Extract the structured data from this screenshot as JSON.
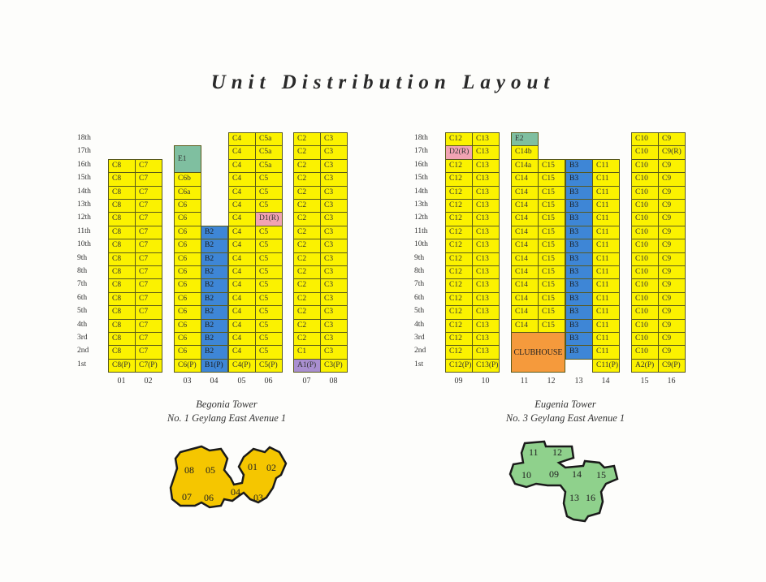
{
  "title": "Unit Distribution Layout",
  "floors": [
    "18th",
    "17th",
    "16th",
    "15th",
    "14th",
    "13th",
    "12th",
    "11th",
    "10th",
    "9th",
    "8th",
    "7th",
    "6th",
    "5th",
    "4th",
    "3rd",
    "2nd",
    "1st"
  ],
  "colors": {
    "yellow": "#fbf200",
    "blue": "#3e86d6",
    "green": "#7fbfa0",
    "pink": "#f2a3b3",
    "purple": "#a98fd0",
    "orange": "#f59a3c"
  },
  "begonia": {
    "name": "Begonia Tower",
    "address": "No. 1 Geylang East Avenue 1",
    "columns": [
      {
        "label": "01",
        "units": [
          null,
          null,
          "C8",
          "C8",
          "C8",
          "C8",
          "C8",
          "C8",
          "C8",
          "C8",
          "C8",
          "C8",
          "C8",
          "C8",
          "C8",
          "C8",
          "C8",
          "C8(P)"
        ]
      },
      {
        "label": "02",
        "units": [
          null,
          null,
          "C7",
          "C7",
          "C7",
          "C7",
          "C7",
          "C7",
          "C7",
          "C7",
          "C7",
          "C7",
          "C7",
          "C7",
          "C7",
          "C7",
          "C7",
          "C7(P)"
        ]
      },
      {
        "label": "03",
        "units": [
          null,
          "E1",
          "E1",
          "C6b",
          "C6a",
          "C6",
          "C6",
          "C6",
          "C6",
          "C6",
          "C6",
          "C6",
          "C6",
          "C6",
          "C6",
          "C6",
          "C6",
          "C6(P)"
        ]
      },
      {
        "label": "04",
        "units": [
          null,
          null,
          null,
          null,
          null,
          null,
          null,
          "B2",
          "B2",
          "B2",
          "B2",
          "B2",
          "B2",
          "B2",
          "B2",
          "B2",
          "B2",
          "B1(P)"
        ]
      },
      {
        "label": "05",
        "units": [
          "C4",
          "C4",
          "C4",
          "C4",
          "C4",
          "C4",
          "C4",
          "C4",
          "C4",
          "C4",
          "C4",
          "C4",
          "C4",
          "C4",
          "C4",
          "C4",
          "C4",
          "C4(P)"
        ]
      },
      {
        "label": "06",
        "units": [
          "C5a",
          "C5a",
          "C5a",
          "C5",
          "C5",
          "C5",
          "D1(R)",
          "C5",
          "C5",
          "C5",
          "C5",
          "C5",
          "C5",
          "C5",
          "C5",
          "C5",
          "C5",
          "C5(P)"
        ]
      },
      {
        "label": "07",
        "units": [
          "C2",
          "C2",
          "C2",
          "C2",
          "C2",
          "C2",
          "C2",
          "C2",
          "C2",
          "C2",
          "C2",
          "C2",
          "C2",
          "C2",
          "C2",
          "C2",
          "C1",
          "A1(P)"
        ]
      },
      {
        "label": "08",
        "units": [
          "C3",
          "C3",
          "C3",
          "C3",
          "C3",
          "C3",
          "C3",
          "C3",
          "C3",
          "C3",
          "C3",
          "C3",
          "C3",
          "C3",
          "C3",
          "C3",
          "C3",
          "C3(P)"
        ]
      }
    ],
    "keyplan_units": [
      "08",
      "05",
      "01",
      "02",
      "07",
      "06",
      "04",
      "03"
    ]
  },
  "eugenia": {
    "name": "Eugenia Tower",
    "address": "No. 3 Geylang East Avenue 1",
    "columns": [
      {
        "label": "09",
        "units": [
          "C12",
          "D2(R)",
          "C12",
          "C12",
          "C12",
          "C12",
          "C12",
          "C12",
          "C12",
          "C12",
          "C12",
          "C12",
          "C12",
          "C12",
          "C12",
          "C12",
          "C12",
          "C12(P)"
        ]
      },
      {
        "label": "10",
        "units": [
          "C13",
          "C13",
          "C13",
          "C13",
          "C13",
          "C13",
          "C13",
          "C13",
          "C13",
          "C13",
          "C13",
          "C13",
          "C13",
          "C13",
          "C13",
          "C13",
          "C13",
          "C13(P)"
        ]
      },
      {
        "label": "11",
        "units": [
          "E2",
          "C14b",
          "C14a",
          "C14",
          "C14",
          "C14",
          "C14",
          "C14",
          "C14",
          "C14",
          "C14",
          "C14",
          "C14",
          "C14",
          "C14",
          null,
          null,
          null
        ]
      },
      {
        "label": "12",
        "units": [
          null,
          null,
          "C15",
          "C15",
          "C15",
          "C15",
          "C15",
          "C15",
          "C15",
          "C15",
          "C15",
          "C15",
          "C15",
          "C15",
          "C15",
          null,
          null,
          null
        ]
      },
      {
        "label": "13",
        "units": [
          null,
          null,
          "B3",
          "B3",
          "B3",
          "B3",
          "B3",
          "B3",
          "B3",
          "B3",
          "B3",
          "B3",
          "B3",
          "B3",
          "B3",
          "B3",
          "B3",
          null
        ]
      },
      {
        "label": "14",
        "units": [
          null,
          null,
          "C11",
          "C11",
          "C11",
          "C11",
          "C11",
          "C11",
          "C11",
          "C11",
          "C11",
          "C11",
          "C11",
          "C11",
          "C11",
          "C11",
          "C11",
          "C11(P)"
        ]
      },
      {
        "label": "15",
        "units": [
          "C10",
          "C10",
          "C10",
          "C10",
          "C10",
          "C10",
          "C10",
          "C10",
          "C10",
          "C10",
          "C10",
          "C10",
          "C10",
          "C10",
          "C10",
          "C10",
          "C10",
          "A2(P)"
        ]
      },
      {
        "label": "16",
        "units": [
          "C9",
          "C9(R)",
          "C9",
          "C9",
          "C9",
          "C9",
          "C9",
          "C9",
          "C9",
          "C9",
          "C9",
          "C9",
          "C9",
          "C9",
          "C9",
          "C9",
          "C9",
          "C9(P)"
        ]
      }
    ],
    "clubhouse": "CLUBHOUSE",
    "keyplan_units": [
      "11",
      "12",
      "10",
      "09",
      "14",
      "15",
      "13",
      "16"
    ]
  }
}
